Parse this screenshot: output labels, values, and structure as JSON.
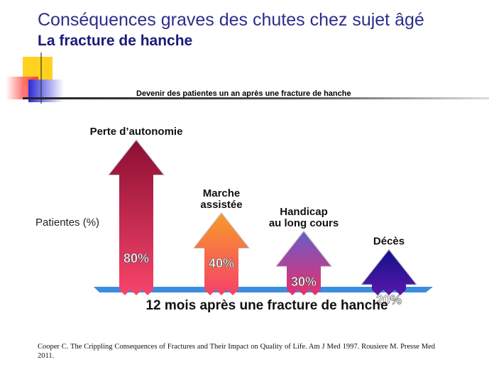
{
  "slide": {
    "title": "Conséquences graves des chutes chez sujet âgé",
    "subtitle": "La fracture de hanche"
  },
  "chart_data": {
    "type": "bar",
    "title": "Devenir des patientes un an après une fracture de hanche",
    "ylabel": "Patientes (%)",
    "xlabel": "12 mois après une fracture de hanche",
    "categories": [
      "Perte d’autonomie",
      "Marche assistée",
      "Handicap au long cours",
      "Décès"
    ],
    "category_lines": [
      [
        "Perte d’autonomie"
      ],
      [
        "Marche",
        "assistée"
      ],
      [
        "Handicap",
        "au long cours"
      ],
      [
        "Décès"
      ]
    ],
    "values": [
      80,
      40,
      30,
      20
    ],
    "value_labels": [
      "80%",
      "40%",
      "30%",
      "20%"
    ],
    "ylim": [
      0,
      100
    ],
    "colors": [
      {
        "top": "#8b0f33",
        "bottom": "#f8456a"
      },
      {
        "top": "#f79a2a",
        "bottom": "#f6416a"
      },
      {
        "top": "#6a5bc8",
        "bottom": "#e8306c"
      },
      {
        "top": "#12128a",
        "bottom": "#5a17a8"
      }
    ],
    "baseline_color": "#3a8ee0"
  },
  "citation": "Cooper C. The Crippling Consequences of Fractures and Their Impact on Quality of Life. Am J Med 1997. Rousiere M. Presse Med 2011."
}
